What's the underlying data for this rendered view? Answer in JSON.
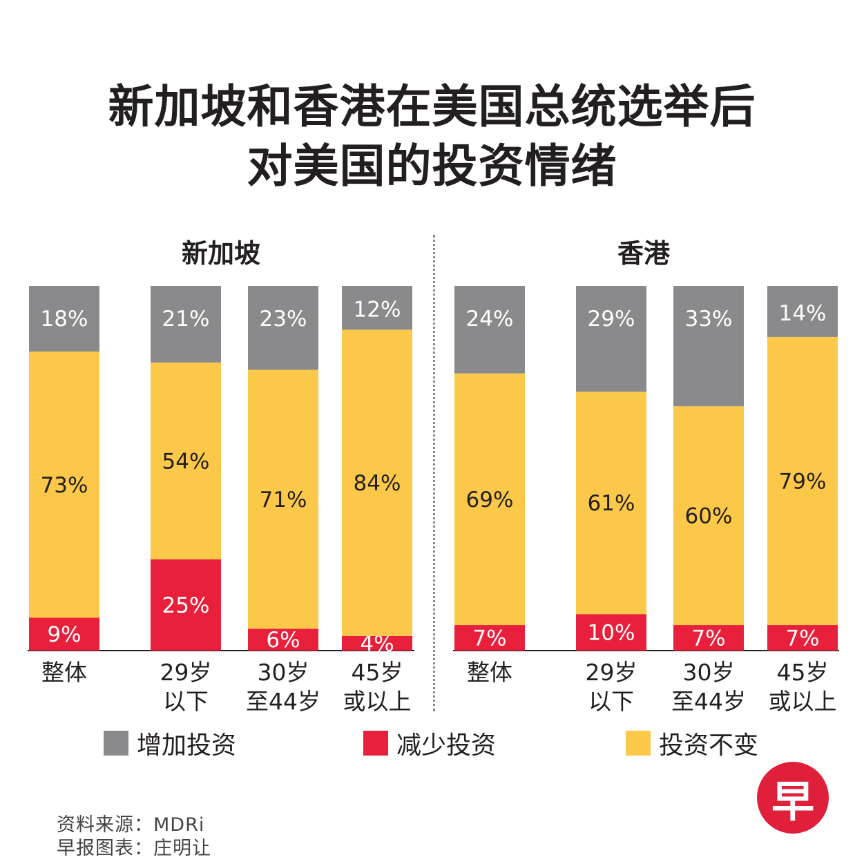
{
  "title_lines": [
    "新加坡和香港在美国总统选举后",
    "对美国的投资情绪"
  ],
  "colors": {
    "increase": "#8a8a8c",
    "decrease": "#e8203b",
    "unchanged": "#fcc84a"
  },
  "chart_data": [
    {
      "type": "bar",
      "title": "新加坡",
      "stacked": true,
      "categories": [
        [
          "整体"
        ],
        [
          "29岁",
          "以下"
        ],
        [
          "30岁",
          "至44岁"
        ],
        [
          "45岁",
          "或以上"
        ]
      ],
      "series": [
        {
          "name": "减少投资",
          "key": "decrease",
          "values": [
            9,
            25,
            6,
            4
          ],
          "labels": [
            "9%",
            "25%",
            "6%",
            "4%"
          ]
        },
        {
          "name": "投资不变",
          "key": "unchanged",
          "values": [
            73,
            54,
            71,
            84
          ],
          "labels": [
            "73%",
            "54%",
            "71%",
            "84%"
          ]
        },
        {
          "name": "增加投资",
          "key": "increase",
          "values": [
            18,
            21,
            23,
            12
          ],
          "labels": [
            "18%",
            "21%",
            "23%",
            "12%"
          ]
        }
      ]
    },
    {
      "type": "bar",
      "title": "香港",
      "stacked": true,
      "categories": [
        [
          "整体"
        ],
        [
          "29岁",
          "以下"
        ],
        [
          "30岁",
          "至44岁"
        ],
        [
          "45岁",
          "或以上"
        ]
      ],
      "series": [
        {
          "name": "减少投资",
          "key": "decrease",
          "values": [
            7,
            10,
            7,
            7
          ],
          "labels": [
            "7%",
            "10%",
            "7%",
            "7%"
          ]
        },
        {
          "name": "投资不变",
          "key": "unchanged",
          "values": [
            69,
            61,
            60,
            79
          ],
          "labels": [
            "69%",
            "61%",
            "60%",
            "79%"
          ]
        },
        {
          "name": "增加投资",
          "key": "increase",
          "values": [
            24,
            29,
            33,
            14
          ],
          "labels": [
            "24%",
            "29%",
            "33%",
            "14%"
          ]
        }
      ]
    }
  ],
  "legend": [
    "增加投资",
    "减少投资",
    "投资不变"
  ],
  "source": {
    "line1": "资料来源：MDRi",
    "line2": "早报图表：庄明让"
  },
  "logo_text": "早"
}
